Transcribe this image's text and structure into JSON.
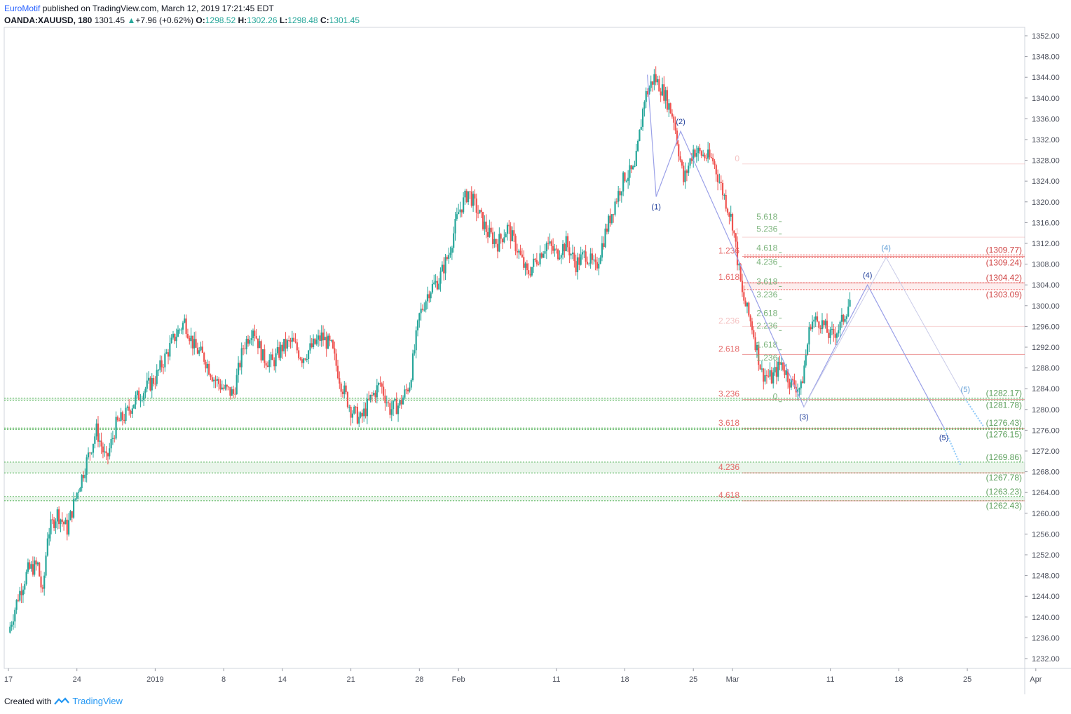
{
  "header": {
    "author": "EuroMotif",
    "published_text": "published on TradingView.com, March 12, 2019 17:21:45 EDT",
    "symbol": "OANDA:XAUUSD, 180",
    "last": "1301.45",
    "change": "+7.96 (+0.62%)",
    "o_label": "O:",
    "o": "1298.52",
    "h_label": "H:",
    "h": "1302.26",
    "l_label": "L:",
    "l": "1298.48",
    "c_label": "C:",
    "c": "1301.45"
  },
  "footer": {
    "created_with": "Created with",
    "brand": "TradingView",
    "logo_icon": "tradingview-logo-icon"
  },
  "colors": {
    "up": "#26a69a",
    "down": "#ef5350",
    "wave": "#9aa0e8",
    "wave_label": "#1f3d9a",
    "fib_red": "#e05050",
    "fib_green": "#7bb37b",
    "zone_green": "#4caf50"
  },
  "chart_data": {
    "type": "candlestick",
    "instrument": "OANDA:XAUUSD",
    "timeframe": "180",
    "y_ticks": [
      1232,
      1236,
      1240,
      1244,
      1248,
      1252,
      1256,
      1260,
      1264,
      1268,
      1272,
      1276,
      1280,
      1284,
      1288,
      1292,
      1296,
      1300,
      1304,
      1308,
      1312,
      1316,
      1320,
      1324,
      1328,
      1332,
      1336,
      1340,
      1344,
      1348,
      1352
    ],
    "ylim": [
      1228,
      1353
    ],
    "x_ticks": [
      {
        "label": "17",
        "day": 0
      },
      {
        "label": "24",
        "day": 7
      },
      {
        "label": "2019",
        "day": 15
      },
      {
        "label": "8",
        "day": 22
      },
      {
        "label": "14",
        "day": 28
      },
      {
        "label": "21",
        "day": 35
      },
      {
        "label": "28",
        "day": 42
      },
      {
        "label": "Feb",
        "day": 46
      },
      {
        "label": "11",
        "day": 56
      },
      {
        "label": "18",
        "day": 63
      },
      {
        "label": "25",
        "day": 70
      },
      {
        "label": "Mar",
        "day": 74
      },
      {
        "label": "11",
        "day": 84
      },
      {
        "label": "18",
        "day": 91
      },
      {
        "label": "25",
        "day": 98
      },
      {
        "label": "Apr",
        "day": 105
      }
    ],
    "price_path": [
      {
        "day": 0,
        "p": 1237
      },
      {
        "day": 1,
        "p": 1244
      },
      {
        "day": 2,
        "p": 1249
      },
      {
        "day": 3,
        "p": 1250
      },
      {
        "day": 3.5,
        "p": 1244
      },
      {
        "day": 4,
        "p": 1256
      },
      {
        "day": 5,
        "p": 1260
      },
      {
        "day": 6,
        "p": 1257
      },
      {
        "day": 7,
        "p": 1264
      },
      {
        "day": 8,
        "p": 1270
      },
      {
        "day": 9,
        "p": 1276
      },
      {
        "day": 10,
        "p": 1270
      },
      {
        "day": 11,
        "p": 1277
      },
      {
        "day": 12,
        "p": 1279
      },
      {
        "day": 13,
        "p": 1282
      },
      {
        "day": 14,
        "p": 1284
      },
      {
        "day": 15,
        "p": 1286
      },
      {
        "day": 16,
        "p": 1290
      },
      {
        "day": 17,
        "p": 1294
      },
      {
        "day": 18,
        "p": 1297
      },
      {
        "day": 19,
        "p": 1292
      },
      {
        "day": 20,
        "p": 1290
      },
      {
        "day": 21,
        "p": 1286
      },
      {
        "day": 22,
        "p": 1284
      },
      {
        "day": 23,
        "p": 1283
      },
      {
        "day": 24,
        "p": 1292
      },
      {
        "day": 25,
        "p": 1296
      },
      {
        "day": 26,
        "p": 1290
      },
      {
        "day": 27,
        "p": 1289
      },
      {
        "day": 28,
        "p": 1292
      },
      {
        "day": 29,
        "p": 1293
      },
      {
        "day": 30,
        "p": 1290
      },
      {
        "day": 31,
        "p": 1292
      },
      {
        "day": 32,
        "p": 1294
      },
      {
        "day": 33,
        "p": 1292
      },
      {
        "day": 34,
        "p": 1285
      },
      {
        "day": 35,
        "p": 1280
      },
      {
        "day": 36,
        "p": 1278
      },
      {
        "day": 37,
        "p": 1282
      },
      {
        "day": 38,
        "p": 1285
      },
      {
        "day": 39,
        "p": 1280
      },
      {
        "day": 40,
        "p": 1281
      },
      {
        "day": 41,
        "p": 1285
      },
      {
        "day": 42,
        "p": 1298
      },
      {
        "day": 43,
        "p": 1303
      },
      {
        "day": 44,
        "p": 1305
      },
      {
        "day": 45,
        "p": 1310
      },
      {
        "day": 46,
        "p": 1318
      },
      {
        "day": 47,
        "p": 1322
      },
      {
        "day": 48,
        "p": 1318
      },
      {
        "day": 49,
        "p": 1314
      },
      {
        "day": 50,
        "p": 1312
      },
      {
        "day": 51,
        "p": 1315
      },
      {
        "day": 52,
        "p": 1311
      },
      {
        "day": 53,
        "p": 1306
      },
      {
        "day": 54,
        "p": 1309
      },
      {
        "day": 55,
        "p": 1312
      },
      {
        "day": 56,
        "p": 1310
      },
      {
        "day": 57,
        "p": 1312
      },
      {
        "day": 58,
        "p": 1308
      },
      {
        "day": 59,
        "p": 1310
      },
      {
        "day": 60,
        "p": 1307
      },
      {
        "day": 61,
        "p": 1314
      },
      {
        "day": 62,
        "p": 1320
      },
      {
        "day": 63,
        "p": 1325
      },
      {
        "day": 64,
        "p": 1326
      },
      {
        "day": 65,
        "p": 1340
      },
      {
        "day": 66,
        "p": 1344
      },
      {
        "day": 67,
        "p": 1341
      },
      {
        "day": 68,
        "p": 1336
      },
      {
        "day": 69,
        "p": 1324
      },
      {
        "day": 70,
        "p": 1330
      },
      {
        "day": 71,
        "p": 1329
      },
      {
        "day": 72,
        "p": 1328
      },
      {
        "day": 73,
        "p": 1322
      },
      {
        "day": 74,
        "p": 1316
      },
      {
        "day": 75,
        "p": 1302
      },
      {
        "day": 76,
        "p": 1296
      },
      {
        "day": 77,
        "p": 1287
      },
      {
        "day": 78,
        "p": 1286
      },
      {
        "day": 79,
        "p": 1289
      },
      {
        "day": 80,
        "p": 1285
      },
      {
        "day": 81,
        "p": 1284
      },
      {
        "day": 82,
        "p": 1297
      },
      {
        "day": 83,
        "p": 1297
      },
      {
        "day": 84,
        "p": 1294
      },
      {
        "day": 85,
        "p": 1296
      },
      {
        "day": 86,
        "p": 1301
      }
    ],
    "price_labels": [
      {
        "label": "(1309.77)",
        "price": 1309.77,
        "color": "red"
      },
      {
        "label": "(1309.24)",
        "price": 1309.24,
        "color": "red"
      },
      {
        "label": "(1304.42)",
        "price": 1304.42,
        "color": "red"
      },
      {
        "label": "(1303.09)",
        "price": 1303.09,
        "color": "red"
      },
      {
        "label": "(1282.17)",
        "price": 1282.17,
        "color": "green"
      },
      {
        "label": "(1281.78)",
        "price": 1281.78,
        "color": "green"
      },
      {
        "label": "(1276.43)",
        "price": 1276.43,
        "color": "green"
      },
      {
        "label": "(1276.15)",
        "price": 1276.15,
        "color": "green"
      },
      {
        "label": "(1269.86)",
        "price": 1269.86,
        "color": "green"
      },
      {
        "label": "(1267.78)",
        "price": 1267.78,
        "color": "green"
      },
      {
        "label": "(1263.23)",
        "price": 1263.23,
        "color": "green"
      },
      {
        "label": "(1262.43)",
        "price": 1262.43,
        "color": "green"
      }
    ],
    "green_zones": [
      [
        1281.78,
        1282.17
      ],
      [
        1276.15,
        1276.43
      ],
      [
        1267.78,
        1269.86
      ],
      [
        1262.43,
        1263.23
      ]
    ],
    "red_zones": [
      [
        1309.24,
        1309.77
      ],
      [
        1303.09,
        1304.42
      ]
    ],
    "fib_extension_red": [
      {
        "label": "0",
        "price": 1327.3,
        "faded": true
      },
      {
        "label": "1",
        "price": 1313.2,
        "faded": true
      },
      {
        "label": "1.236",
        "price": 1309.5
      },
      {
        "label": "1.618",
        "price": 1304.4
      },
      {
        "label": "2.236",
        "price": 1296.0,
        "faded": true
      },
      {
        "label": "2.618",
        "price": 1290.6
      },
      {
        "label": "3.236",
        "price": 1281.9
      },
      {
        "label": "3.618",
        "price": 1276.3
      },
      {
        "label": "4.236",
        "price": 1267.8
      },
      {
        "label": "4.618",
        "price": 1262.4
      }
    ],
    "fib_extension_green": [
      {
        "label": "5.618",
        "price": 1316.2
      },
      {
        "label": "5.236",
        "price": 1313.8
      },
      {
        "label": "4.618",
        "price": 1310.2
      },
      {
        "label": "4.236",
        "price": 1307.5
      },
      {
        "label": "3.618",
        "price": 1303.7
      },
      {
        "label": "3.236",
        "price": 1301.2
      },
      {
        "label": "2.618",
        "price": 1297.6
      },
      {
        "label": "2.236",
        "price": 1295.2
      },
      {
        "label": "1.618",
        "price": 1291.5
      },
      {
        "label": "1.236",
        "price": 1289.0
      },
      {
        "label": "0",
        "price": 1281.5
      }
    ],
    "elliott_waves": [
      {
        "label": "(1)",
        "day": 66.2,
        "price": 1321.0,
        "pos": "below"
      },
      {
        "label": "(2)",
        "day": 68.7,
        "price": 1333.6,
        "pos": "above"
      },
      {
        "label": "(3)",
        "day": 81.3,
        "price": 1280.5,
        "pos": "below"
      },
      {
        "label": "(4)",
        "day": 87.8,
        "price": 1304.0,
        "pos": "above"
      },
      {
        "label": "(5)",
        "day": 95.6,
        "price": 1276.5,
        "pos": "below"
      },
      {
        "label": "(4)",
        "day": 89.7,
        "price": 1309.3,
        "pos": "above",
        "light": true
      },
      {
        "label": "(5)",
        "day": 97.8,
        "price": 1282.0,
        "pos": "above",
        "light": true
      }
    ]
  }
}
